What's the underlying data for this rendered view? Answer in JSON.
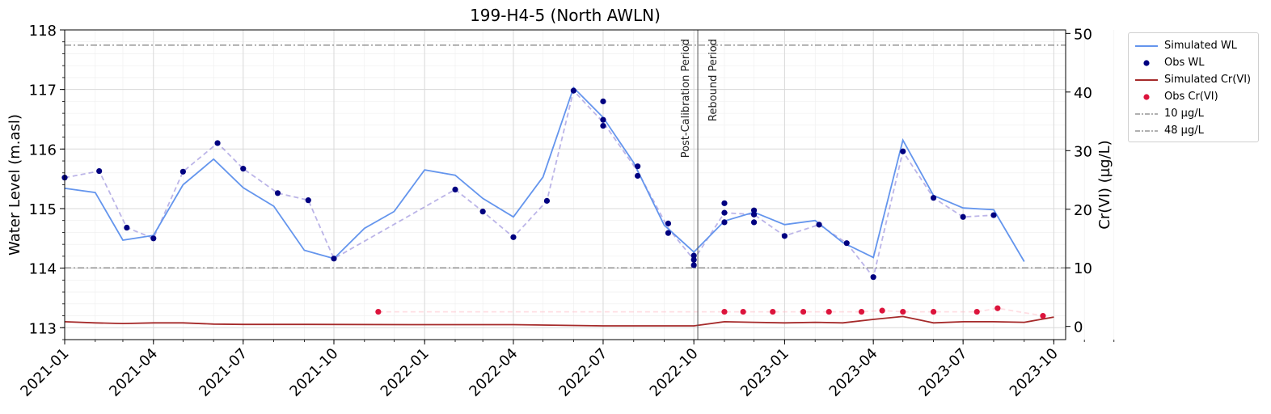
{
  "chart_data": {
    "type": "line",
    "title": "199-H4-5 (North AWLN)",
    "ylabel": "Water Level (m.asl)",
    "y2label": "Cr(VI) (µg/L)",
    "xlabel": "",
    "xlim": [
      "2021-01-01",
      "2023-10-13"
    ],
    "ylim": [
      112.8,
      118.0
    ],
    "y2lim": [
      -2.25,
      50.6
    ],
    "x_ticks": [
      "2021-01",
      "2021-04",
      "2021-07",
      "2021-10",
      "2022-01",
      "2022-04",
      "2022-07",
      "2022-10",
      "2023-01",
      "2023-04",
      "2023-07",
      "2023-10"
    ],
    "y_ticks": [
      "113",
      "114",
      "115",
      "116",
      "117",
      "118"
    ],
    "y2_ticks": [
      "0",
      "10",
      "20",
      "30",
      "40",
      "50"
    ],
    "grid": true,
    "legend_position": "outside-right",
    "vertical_line": {
      "x": "2022-10-05",
      "labels": [
        "Post-Calibration Period",
        "Rebound Period"
      ]
    },
    "series": [
      {
        "name": "Simulated WL",
        "kind": "line",
        "axis": "left",
        "color": "#6495ed",
        "points": [
          [
            "2021-01-01",
            115.34
          ],
          [
            "2021-02-01",
            115.27
          ],
          [
            "2021-03-01",
            114.47
          ],
          [
            "2021-04-01",
            114.55
          ],
          [
            "2021-05-01",
            115.4
          ],
          [
            "2021-06-01",
            115.83
          ],
          [
            "2021-07-01",
            115.35
          ],
          [
            "2021-08-01",
            115.04
          ],
          [
            "2021-09-01",
            114.3
          ],
          [
            "2021-10-01",
            114.16
          ],
          [
            "2021-11-01",
            114.67
          ],
          [
            "2021-12-01",
            114.95
          ],
          [
            "2022-01-01",
            115.65
          ],
          [
            "2022-02-01",
            115.56
          ],
          [
            "2022-03-01",
            115.17
          ],
          [
            "2022-04-01",
            114.86
          ],
          [
            "2022-05-01",
            115.53
          ],
          [
            "2022-06-01",
            117.03
          ],
          [
            "2022-07-01",
            116.53
          ],
          [
            "2022-08-01",
            115.77
          ],
          [
            "2022-09-01",
            114.72
          ],
          [
            "2022-10-01",
            114.27
          ],
          [
            "2022-11-01",
            114.79
          ],
          [
            "2022-12-01",
            114.94
          ],
          [
            "2023-01-01",
            114.73
          ],
          [
            "2023-02-01",
            114.8
          ],
          [
            "2023-03-01",
            114.43
          ],
          [
            "2023-04-01",
            114.18
          ],
          [
            "2023-05-01",
            116.15
          ],
          [
            "2023-06-01",
            115.22
          ],
          [
            "2023-07-01",
            115.01
          ],
          [
            "2023-08-01",
            114.98
          ],
          [
            "2023-09-01",
            114.11
          ]
        ]
      },
      {
        "name": "Obs WL",
        "kind": "scatter",
        "axis": "left",
        "color": "#000080",
        "points": [
          [
            "2021-01-01",
            115.52
          ],
          [
            "2021-02-05",
            115.63
          ],
          [
            "2021-03-05",
            114.68
          ],
          [
            "2021-04-01",
            114.5
          ],
          [
            "2021-05-01",
            115.62
          ],
          [
            "2021-06-05",
            116.1
          ],
          [
            "2021-07-01",
            115.67
          ],
          [
            "2021-08-05",
            115.26
          ],
          [
            "2021-09-05",
            115.14
          ],
          [
            "2021-10-01",
            114.16
          ],
          [
            "2022-02-01",
            115.32
          ],
          [
            "2022-03-01",
            114.95
          ],
          [
            "2022-04-01",
            114.52
          ],
          [
            "2022-05-05",
            115.13
          ],
          [
            "2022-06-01",
            116.98
          ],
          [
            "2022-07-01",
            116.8
          ],
          [
            "2022-07-01",
            116.49
          ],
          [
            "2022-07-01",
            116.39
          ],
          [
            "2022-08-05",
            115.71
          ],
          [
            "2022-08-05",
            115.55
          ],
          [
            "2022-09-05",
            114.75
          ],
          [
            "2022-09-05",
            114.59
          ],
          [
            "2022-10-01",
            114.21
          ],
          [
            "2022-10-01",
            114.14
          ],
          [
            "2022-10-01",
            114.05
          ],
          [
            "2022-11-01",
            115.09
          ],
          [
            "2022-11-01",
            114.93
          ],
          [
            "2022-11-01",
            114.77
          ],
          [
            "2022-12-01",
            114.97
          ],
          [
            "2022-12-01",
            114.9
          ],
          [
            "2022-12-01",
            114.77
          ],
          [
            "2023-01-01",
            114.54
          ],
          [
            "2023-02-05",
            114.73
          ],
          [
            "2023-03-05",
            114.42
          ],
          [
            "2023-04-01",
            113.85
          ],
          [
            "2023-05-01",
            115.96
          ],
          [
            "2023-06-01",
            115.18
          ],
          [
            "2023-07-01",
            114.86
          ],
          [
            "2023-08-01",
            114.89
          ]
        ]
      },
      {
        "name": "Obs WL trend",
        "kind": "dashed",
        "axis": "left",
        "color": "#6a5acd",
        "points": [
          [
            "2021-01-01",
            115.52
          ],
          [
            "2021-02-05",
            115.63
          ],
          [
            "2021-03-05",
            114.68
          ],
          [
            "2021-04-01",
            114.5
          ],
          [
            "2021-05-01",
            115.62
          ],
          [
            "2021-06-05",
            116.1
          ],
          [
            "2021-07-01",
            115.67
          ],
          [
            "2021-08-05",
            115.26
          ],
          [
            "2021-09-05",
            115.14
          ],
          [
            "2021-10-01",
            114.16
          ],
          [
            "2022-02-01",
            115.32
          ],
          [
            "2022-03-01",
            114.95
          ],
          [
            "2022-04-01",
            114.52
          ],
          [
            "2022-05-05",
            115.13
          ],
          [
            "2022-06-01",
            116.98
          ],
          [
            "2022-07-01",
            116.45
          ],
          [
            "2022-08-05",
            115.63
          ],
          [
            "2022-09-05",
            114.67
          ],
          [
            "2022-10-01",
            114.14
          ],
          [
            "2022-11-01",
            114.93
          ],
          [
            "2022-12-01",
            114.9
          ],
          [
            "2023-01-01",
            114.54
          ],
          [
            "2023-02-05",
            114.73
          ],
          [
            "2023-03-05",
            114.42
          ],
          [
            "2023-04-01",
            113.85
          ],
          [
            "2023-05-01",
            115.96
          ],
          [
            "2023-06-01",
            115.18
          ],
          [
            "2023-07-01",
            114.86
          ],
          [
            "2023-08-01",
            114.89
          ]
        ]
      },
      {
        "name": "Simulated Cr(VI)",
        "kind": "line",
        "axis": "right",
        "color": "#a52a2a",
        "points": [
          [
            "2021-01-01",
            0.8
          ],
          [
            "2021-02-01",
            0.6
          ],
          [
            "2021-03-01",
            0.5
          ],
          [
            "2021-04-01",
            0.6
          ],
          [
            "2021-05-01",
            0.6
          ],
          [
            "2021-06-01",
            0.4
          ],
          [
            "2021-07-01",
            0.35
          ],
          [
            "2021-09-01",
            0.35
          ],
          [
            "2022-01-01",
            0.3
          ],
          [
            "2022-04-01",
            0.3
          ],
          [
            "2022-07-01",
            0.1
          ],
          [
            "2022-10-01",
            0.1
          ],
          [
            "2022-11-01",
            0.8
          ],
          [
            "2022-12-01",
            0.7
          ],
          [
            "2023-01-01",
            0.6
          ],
          [
            "2023-02-01",
            0.7
          ],
          [
            "2023-03-01",
            0.6
          ],
          [
            "2023-04-01",
            1.2
          ],
          [
            "2023-05-01",
            1.7
          ],
          [
            "2023-06-01",
            0.6
          ],
          [
            "2023-07-01",
            0.8
          ],
          [
            "2023-08-01",
            0.8
          ],
          [
            "2023-09-01",
            0.7
          ],
          [
            "2023-10-01",
            1.6
          ]
        ]
      },
      {
        "name": "Obs Cr(VI)",
        "kind": "scatter",
        "axis": "right",
        "color": "#dc143c",
        "points": [
          [
            "2021-11-15",
            2.5
          ],
          [
            "2022-11-01",
            2.5
          ],
          [
            "2022-11-20",
            2.5
          ],
          [
            "2022-12-20",
            2.5
          ],
          [
            "2023-01-20",
            2.5
          ],
          [
            "2023-02-15",
            2.5
          ],
          [
            "2023-03-20",
            2.5
          ],
          [
            "2023-04-10",
            2.7
          ],
          [
            "2023-05-01",
            2.5
          ],
          [
            "2023-06-01",
            2.5
          ],
          [
            "2023-07-15",
            2.5
          ],
          [
            "2023-08-05",
            3.1
          ],
          [
            "2023-09-20",
            1.8
          ]
        ]
      },
      {
        "name": "Obs Cr(VI) trend",
        "kind": "dashed",
        "axis": "right",
        "color": "#ffb6c1",
        "points": [
          [
            "2021-11-15",
            2.5
          ],
          [
            "2022-11-01",
            2.5
          ],
          [
            "2022-11-20",
            2.5
          ],
          [
            "2022-12-20",
            2.5
          ],
          [
            "2023-01-20",
            2.5
          ],
          [
            "2023-02-15",
            2.5
          ],
          [
            "2023-03-20",
            2.5
          ],
          [
            "2023-04-10",
            2.7
          ],
          [
            "2023-05-01",
            2.5
          ],
          [
            "2023-06-01",
            2.5
          ],
          [
            "2023-07-15",
            2.5
          ],
          [
            "2023-08-05",
            3.1
          ],
          [
            "2023-09-20",
            1.8
          ]
        ]
      },
      {
        "name": "10 µg/L",
        "kind": "hline",
        "axis": "right",
        "color": "#808080",
        "value": 10
      },
      {
        "name": "48 µg/L",
        "kind": "hline",
        "axis": "right",
        "color": "#808080",
        "value": 48
      }
    ]
  },
  "legend": {
    "items": [
      {
        "label": "Simulated WL",
        "key": "line",
        "color": "#6495ed"
      },
      {
        "label": "Obs WL",
        "key": "dot",
        "color": "#000080"
      },
      {
        "label": "Simulated Cr(VI)",
        "key": "line",
        "color": "#a52a2a"
      },
      {
        "label": "Obs Cr(VI)",
        "key": "dot",
        "color": "#dc143c"
      },
      {
        "label": "10 µg/L",
        "key": "dashdot",
        "color": "#808080"
      },
      {
        "label": "48 µg/L",
        "key": "dashdot",
        "color": "#808080"
      }
    ]
  }
}
